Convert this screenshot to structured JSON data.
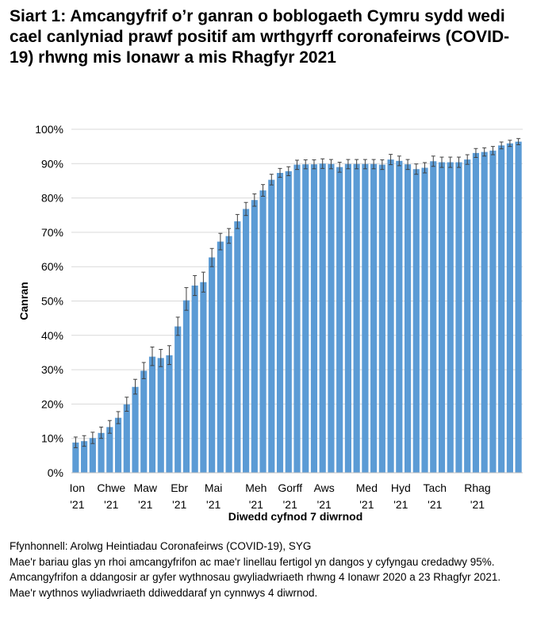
{
  "title": "Siart 1: Amcangyfrif o’r ganran o boblogaeth Cymru sydd wedi cael canlyniad prawf positif am wrthgyrff coronafeirws (COVID-19) rhwng mis Ionawr a mis Rhagfyr 2021",
  "notes": [
    "Ffynhonnell: Arolwg Heintiadau Coronafeirws (COVID-19), SYG",
    "Mae'r bariau glas yn rhoi amcangyfrifon ac mae'r linellau fertigol yn dangos y cyfyngau credadwy 95%. Amcangyfrifon a ddangosir ar gyfer wythnosau gwyliadwriaeth rhwng 4 Ionawr 2020 a 23 Rhagfyr 2021.",
    "Mae'r wythnos wyliadwriaeth ddiweddaraf yn cynnwys 4 diwrnod."
  ],
  "colors": {
    "bar": "#5b9bd5",
    "error": "#404040",
    "grid": "#d9d9d9",
    "axis": "#bfbfbf"
  },
  "chart_data": {
    "type": "bar",
    "title": "Siart 1: Amcangyfrif o’r ganran o boblogaeth Cymru sydd wedi cael canlyniad prawf positif am wrthgyrff coronafeirws (COVID-19) rhwng mis Ionawr a mis Rhagfyr 2021",
    "xlabel": "Diwedd cyfnod 7 diwrnod",
    "ylabel": "Canran",
    "ylim": [
      0,
      100
    ],
    "yticks": [
      0,
      10,
      20,
      30,
      40,
      50,
      60,
      70,
      80,
      90,
      100
    ],
    "ytick_labels": [
      "0%",
      "10%",
      "20%",
      "30%",
      "40%",
      "50%",
      "60%",
      "70%",
      "80%",
      "90%",
      "100%"
    ],
    "month_labels": [
      {
        "index": 0,
        "line1": "Ion",
        "line2": "'21"
      },
      {
        "index": 4,
        "line1": "Chwe",
        "line2": "'21"
      },
      {
        "index": 8,
        "line1": "Maw",
        "line2": "'21"
      },
      {
        "index": 12,
        "line1": "Ebr",
        "line2": "'21"
      },
      {
        "index": 16,
        "line1": "Mai",
        "line2": "'21"
      },
      {
        "index": 21,
        "line1": "Meh",
        "line2": "'21"
      },
      {
        "index": 25,
        "line1": "Gorff",
        "line2": "'21"
      },
      {
        "index": 29,
        "line1": "Aws",
        "line2": "'21"
      },
      {
        "index": 34,
        "line1": "Med",
        "line2": "'21"
      },
      {
        "index": 38,
        "line1": "Hyd",
        "line2": "'21"
      },
      {
        "index": 42,
        "line1": "Tach",
        "line2": "'21"
      },
      {
        "index": 47,
        "line1": "Rhag",
        "line2": "'21"
      }
    ],
    "values": [
      8.8,
      9.2,
      10.1,
      11.6,
      13.3,
      16.0,
      19.9,
      25.0,
      29.7,
      33.8,
      33.4,
      34.2,
      42.6,
      50.2,
      54.5,
      55.5,
      62.7,
      67.3,
      68.9,
      73.2,
      76.8,
      79.4,
      82.2,
      85.3,
      87.3,
      87.8,
      89.7,
      89.8,
      89.8,
      90.0,
      89.9,
      89.0,
      89.9,
      89.9,
      89.9,
      89.9,
      89.7,
      91.2,
      90.8,
      89.8,
      88.4,
      88.8,
      90.7,
      90.4,
      90.4,
      90.4,
      91.2,
      93.1,
      93.4,
      93.8,
      95.3,
      95.9,
      96.4
    ],
    "lower": [
      7.3,
      7.7,
      8.5,
      10.0,
      11.5,
      14.3,
      17.9,
      22.9,
      27.4,
      31.2,
      30.9,
      31.5,
      40.0,
      47.3,
      51.6,
      52.6,
      60.0,
      64.9,
      66.8,
      71.1,
      74.9,
      77.6,
      80.5,
      83.8,
      86.0,
      86.5,
      88.3,
      88.5,
      88.5,
      88.6,
      88.5,
      87.5,
      88.5,
      88.5,
      88.5,
      88.5,
      88.3,
      89.7,
      89.4,
      88.3,
      86.9,
      87.3,
      89.2,
      88.9,
      88.9,
      88.9,
      89.8,
      91.8,
      92.2,
      92.6,
      94.3,
      95.0,
      95.5
    ],
    "upper": [
      10.4,
      10.8,
      11.8,
      13.3,
      15.2,
      17.8,
      22.0,
      27.2,
      32.1,
      36.6,
      35.9,
      37.0,
      45.3,
      53.9,
      57.4,
      58.4,
      65.3,
      69.7,
      71.1,
      75.2,
      78.7,
      81.2,
      83.9,
      86.9,
      88.6,
      89.1,
      91.0,
      91.1,
      91.1,
      91.4,
      91.2,
      90.4,
      91.2,
      91.2,
      91.2,
      91.2,
      91.1,
      92.7,
      92.2,
      91.2,
      89.9,
      90.3,
      92.2,
      91.9,
      91.9,
      91.9,
      92.6,
      94.4,
      94.6,
      95.0,
      96.3,
      96.8,
      97.3
    ]
  }
}
